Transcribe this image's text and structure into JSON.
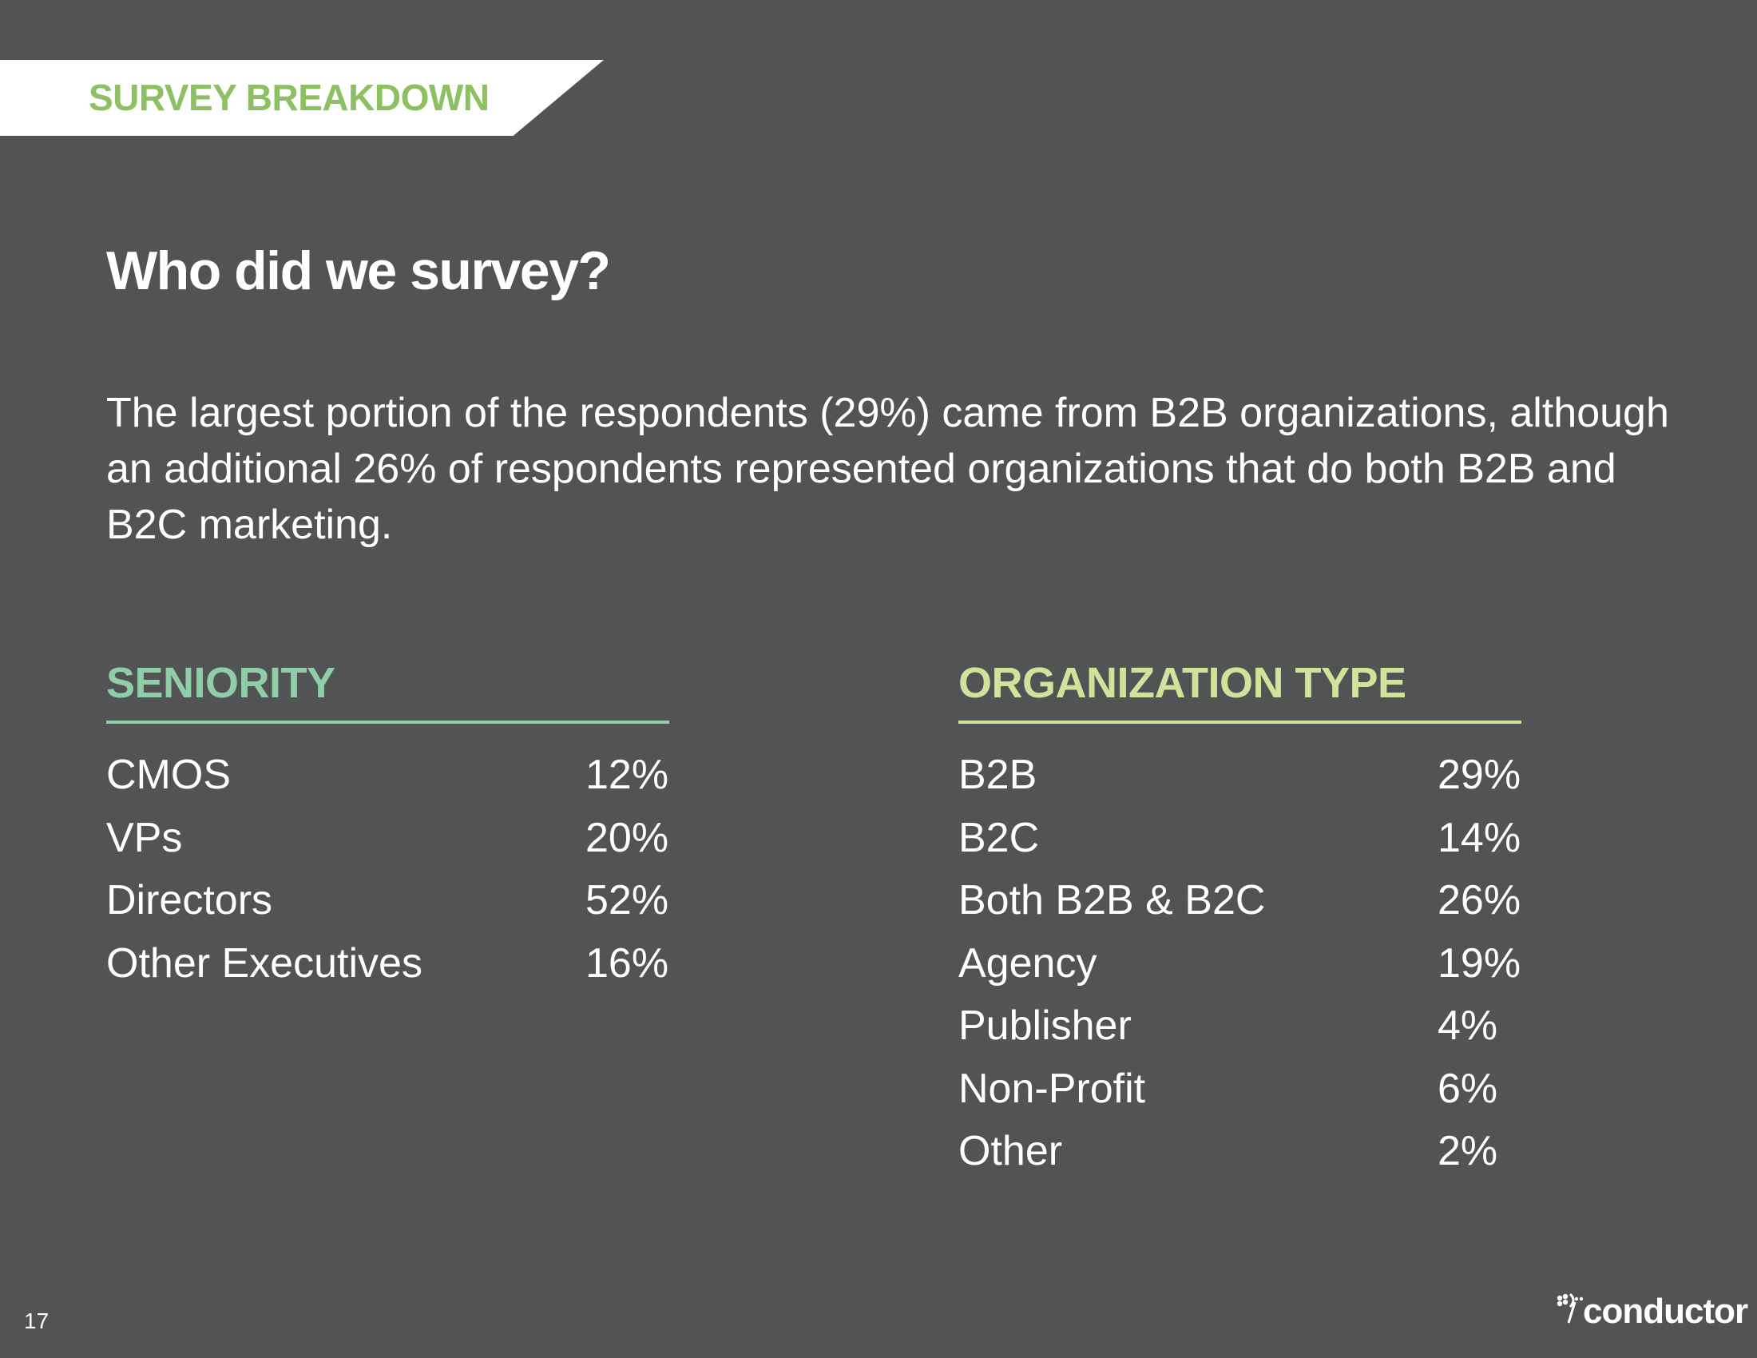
{
  "header": {
    "banner_label": "SURVEY BREAKDOWN"
  },
  "title": "Who did we survey?",
  "intro_text": "The largest portion of the respondents (29%) came from B2B organizations, although an additional 26% of respondents represented organizations that do both B2B and B2C marketing.",
  "seniority": {
    "heading": "SENIORITY",
    "rows": [
      {
        "label": "CMOS",
        "value": "12%"
      },
      {
        "label": "VPs",
        "value": "20%"
      },
      {
        "label": "Directors",
        "value": "52%"
      },
      {
        "label": "Other Executives",
        "value": "16%"
      }
    ]
  },
  "organization_type": {
    "heading": "ORGANIZATION TYPE",
    "rows": [
      {
        "label": "B2B",
        "value": "29%"
      },
      {
        "label": "B2C",
        "value": "14%"
      },
      {
        "label": "Both B2B & B2C",
        "value": "26%"
      },
      {
        "label": "Agency",
        "value": "19%"
      },
      {
        "label": "Publisher",
        "value": "4%"
      },
      {
        "label": "Non-Profit",
        "value": "6%"
      },
      {
        "label": "Other",
        "value": "2%"
      }
    ]
  },
  "footer": {
    "page_number": "17",
    "logo_text": "conductor",
    "logo_icon": "conductor-logo-icon"
  },
  "colors": {
    "background": "#525355",
    "banner_text": "#8cc063",
    "seniority_accent": "#8fcea6",
    "org_accent": "#cfe39b"
  }
}
